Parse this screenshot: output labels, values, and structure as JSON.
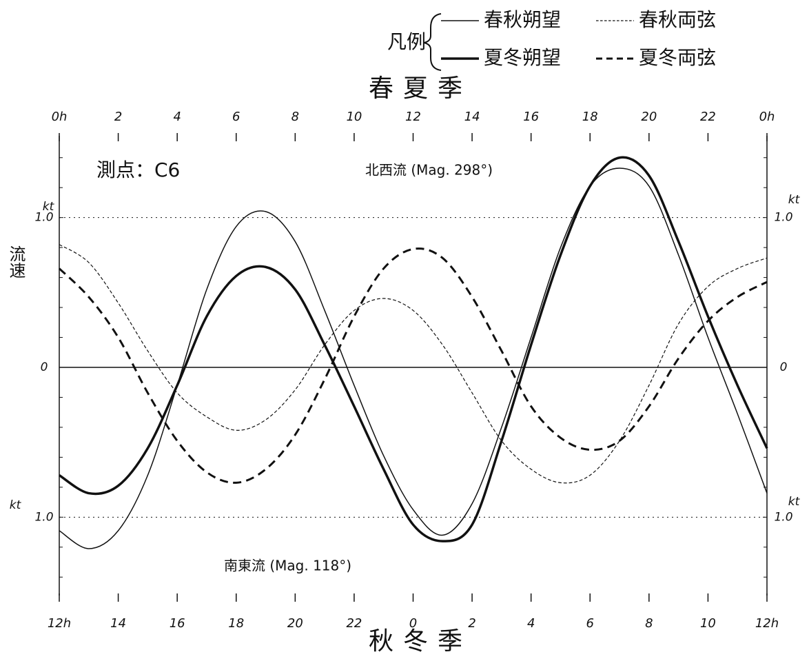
{
  "chart_data": {
    "type": "line",
    "title": "春夏季",
    "x2_title": "秋冬季",
    "y_label": "流速",
    "y_unit": "kt",
    "legend_label": "凡例",
    "annotations": [
      "測点：C6",
      "北西流 (Mag. 298°)",
      "南東流 (Mag. 118°)"
    ],
    "x": [
      0,
      1,
      2,
      3,
      4,
      5,
      6,
      7,
      8,
      9,
      10,
      11,
      12,
      13,
      14,
      15,
      16,
      17,
      18,
      19,
      20,
      21,
      22,
      23,
      24
    ],
    "xlim": [
      0,
      24
    ],
    "xticks": [
      {
        "value": 0,
        "label": "0h"
      },
      2,
      4,
      6,
      8,
      10,
      12,
      14,
      16,
      18,
      20,
      22,
      {
        "value": 24,
        "label": "0h"
      }
    ],
    "x2ticks": [
      {
        "value": 0,
        "label": "12h"
      },
      {
        "value": 2,
        "label": "14"
      },
      {
        "value": 4,
        "label": "16"
      },
      {
        "value": 6,
        "label": "18"
      },
      {
        "value": 8,
        "label": "20"
      },
      {
        "value": 10,
        "label": "22"
      },
      {
        "value": 12,
        "label": "0"
      },
      {
        "value": 14,
        "label": "2"
      },
      {
        "value": 16,
        "label": "4"
      },
      {
        "value": 18,
        "label": "6"
      },
      {
        "value": 20,
        "label": "8"
      },
      {
        "value": 22,
        "label": "10"
      },
      {
        "value": 24,
        "label": "12h"
      }
    ],
    "ylim": [
      -1.5,
      1.5
    ],
    "yticks": [
      {
        "value": -1,
        "label": "1.0"
      },
      0,
      {
        "value": 1,
        "label": "1.0"
      }
    ],
    "y_minor_ticks": [
      -1.4,
      -1.2,
      -0.8,
      -0.6,
      -0.4,
      -0.2,
      0.2,
      0.4,
      0.6,
      0.8,
      1.2,
      1.4
    ],
    "series": [
      {
        "name": "春秋朔望",
        "color": "#111",
        "line_width": 1.5,
        "dashed": false,
        "values": [
          -1.09,
          -1.21,
          -1.09,
          -0.72,
          -0.12,
          0.52,
          0.94,
          1.04,
          0.84,
          0.38,
          -0.12,
          -0.59,
          -0.95,
          -1.12,
          -0.91,
          -0.4,
          0.2,
          0.8,
          1.21,
          1.33,
          1.21,
          0.75,
          0.2,
          -0.31,
          -0.84
        ]
      },
      {
        "name": "春秋両弦",
        "color": "#111",
        "line_width": 1.2,
        "dashed": true,
        "values": [
          0.82,
          0.7,
          0.43,
          0.11,
          -0.17,
          -0.33,
          -0.42,
          -0.35,
          -0.15,
          0.15,
          0.38,
          0.46,
          0.38,
          0.15,
          -0.17,
          -0.49,
          -0.68,
          -0.77,
          -0.72,
          -0.49,
          -0.12,
          0.29,
          0.54,
          0.66,
          0.73
        ]
      },
      {
        "name": "夏冬朔望",
        "color": "#111",
        "line_width": 3.5,
        "dashed": false,
        "values": [
          -0.72,
          -0.84,
          -0.79,
          -0.54,
          -0.12,
          0.34,
          0.61,
          0.67,
          0.52,
          0.15,
          -0.26,
          -0.68,
          -1.05,
          -1.16,
          -1.05,
          -0.49,
          0.15,
          0.75,
          1.21,
          1.4,
          1.28,
          0.84,
          0.34,
          -0.12,
          -0.54
        ]
      },
      {
        "name": "夏冬両弦",
        "color": "#111",
        "line_width": 3,
        "dashed": true,
        "values": [
          0.66,
          0.47,
          0.2,
          -0.17,
          -0.49,
          -0.7,
          -0.77,
          -0.68,
          -0.45,
          -0.08,
          0.34,
          0.66,
          0.79,
          0.73,
          0.47,
          0.11,
          -0.26,
          -0.47,
          -0.55,
          -0.49,
          -0.26,
          0.06,
          0.31,
          0.47,
          0.57
        ]
      }
    ]
  }
}
